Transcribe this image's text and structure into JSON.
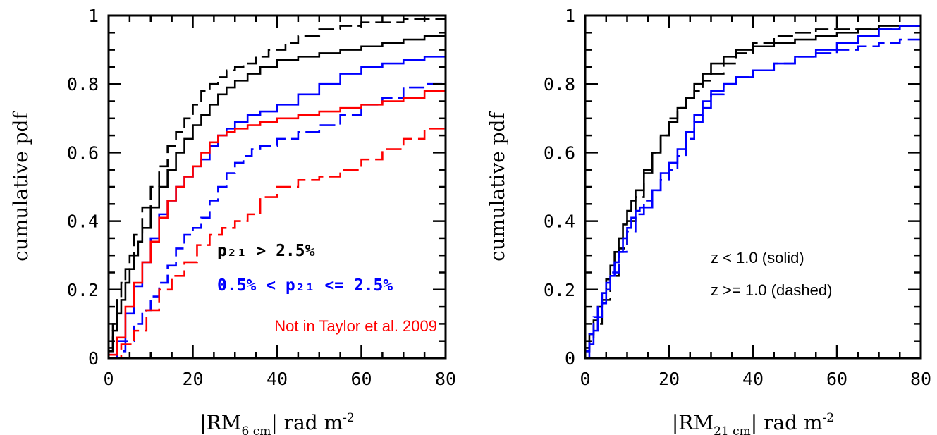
{
  "chart_data": [
    {
      "type": "line",
      "title": "",
      "xlabel": {
        "pre": "|RM",
        "sub": "6 cm",
        "post": "| rad m",
        "sup": "-2"
      },
      "ylabel": "cumulative pdf",
      "xlim": [
        0,
        80
      ],
      "ylim": [
        0,
        1
      ],
      "xticks": [
        0,
        20,
        40,
        60,
        80
      ],
      "xtick_labels": [
        "0",
        "20",
        "40",
        "60",
        "80"
      ],
      "yticks": [
        0,
        0.2,
        0.4,
        0.6,
        0.8,
        1
      ],
      "ytick_labels": [
        "0",
        "0.2",
        "0.4",
        "0.6",
        "0.8",
        "1"
      ],
      "annotations": [
        {
          "text": "p₂₁ > 2.5%",
          "color": "#000000"
        },
        {
          "text": "0.5% < p₂₁ <= 2.5%",
          "color": "#0000ff"
        },
        {
          "text": "Not in Taylor et al. 2009",
          "color": "#ff0000"
        }
      ],
      "series": [
        {
          "color": "#000000",
          "dash": "solid",
          "step": true,
          "x": [
            0,
            1,
            2,
            3,
            4,
            5,
            6,
            7,
            8,
            10,
            12,
            14,
            16,
            18,
            20,
            22,
            24,
            26,
            28,
            30,
            33,
            36,
            40,
            45,
            50,
            55,
            60,
            65,
            70,
            75,
            80
          ],
          "y": [
            0.02,
            0.08,
            0.13,
            0.17,
            0.22,
            0.26,
            0.3,
            0.34,
            0.38,
            0.44,
            0.5,
            0.55,
            0.6,
            0.64,
            0.68,
            0.71,
            0.74,
            0.77,
            0.79,
            0.81,
            0.83,
            0.85,
            0.87,
            0.88,
            0.89,
            0.9,
            0.91,
            0.92,
            0.93,
            0.94,
            0.95
          ]
        },
        {
          "color": "#000000",
          "dash": "dashed",
          "step": true,
          "x": [
            0,
            1,
            2,
            3,
            4,
            5,
            6,
            8,
            10,
            12,
            14,
            16,
            18,
            20,
            22,
            24,
            26,
            28,
            30,
            32,
            35,
            38,
            42,
            45,
            50,
            55,
            60,
            65,
            70,
            80
          ],
          "y": [
            0.03,
            0.1,
            0.17,
            0.22,
            0.26,
            0.3,
            0.36,
            0.44,
            0.5,
            0.56,
            0.62,
            0.66,
            0.7,
            0.74,
            0.78,
            0.8,
            0.82,
            0.84,
            0.85,
            0.86,
            0.88,
            0.9,
            0.92,
            0.94,
            0.96,
            0.97,
            0.98,
            0.98,
            0.99,
            0.99
          ]
        },
        {
          "color": "#0000ff",
          "dash": "solid",
          "step": true,
          "x": [
            0,
            2,
            4,
            6,
            8,
            10,
            12,
            14,
            16,
            18,
            20,
            22,
            24,
            26,
            28,
            30,
            33,
            36,
            40,
            45,
            50,
            55,
            60,
            65,
            70,
            75,
            80
          ],
          "y": [
            0.01,
            0.05,
            0.13,
            0.21,
            0.28,
            0.35,
            0.42,
            0.46,
            0.5,
            0.53,
            0.56,
            0.58,
            0.62,
            0.65,
            0.67,
            0.69,
            0.71,
            0.72,
            0.74,
            0.77,
            0.8,
            0.83,
            0.85,
            0.86,
            0.87,
            0.88,
            0.89
          ]
        },
        {
          "color": "#0000ff",
          "dash": "dashed",
          "step": true,
          "x": [
            0,
            2,
            4,
            6,
            8,
            10,
            12,
            14,
            16,
            18,
            20,
            22,
            24,
            26,
            28,
            30,
            32,
            34,
            36,
            40,
            45,
            50,
            55,
            60,
            65,
            70,
            75,
            80
          ],
          "y": [
            0.0,
            0.02,
            0.05,
            0.1,
            0.14,
            0.18,
            0.22,
            0.27,
            0.32,
            0.36,
            0.38,
            0.41,
            0.46,
            0.5,
            0.54,
            0.57,
            0.59,
            0.61,
            0.62,
            0.64,
            0.66,
            0.68,
            0.71,
            0.74,
            0.76,
            0.79,
            0.8,
            0.81
          ]
        },
        {
          "color": "#ff0000",
          "dash": "solid",
          "step": true,
          "x": [
            0,
            2,
            4,
            6,
            8,
            10,
            12,
            14,
            16,
            18,
            20,
            22,
            24,
            26,
            28,
            30,
            33,
            36,
            40,
            45,
            50,
            55,
            60,
            65,
            70,
            75,
            80
          ],
          "y": [
            0.01,
            0.06,
            0.15,
            0.22,
            0.28,
            0.34,
            0.41,
            0.46,
            0.5,
            0.53,
            0.56,
            0.6,
            0.63,
            0.65,
            0.66,
            0.67,
            0.68,
            0.69,
            0.7,
            0.71,
            0.72,
            0.73,
            0.74,
            0.75,
            0.76,
            0.78,
            0.8
          ]
        },
        {
          "color": "#ff0000",
          "dash": "dashed",
          "step": true,
          "x": [
            0,
            3,
            6,
            9,
            12,
            15,
            18,
            21,
            24,
            27,
            30,
            33,
            36,
            40,
            45,
            50,
            55,
            60,
            65,
            70,
            75,
            80
          ],
          "y": [
            0.0,
            0.04,
            0.08,
            0.14,
            0.2,
            0.24,
            0.28,
            0.33,
            0.36,
            0.38,
            0.4,
            0.42,
            0.47,
            0.5,
            0.52,
            0.53,
            0.55,
            0.58,
            0.61,
            0.64,
            0.67,
            0.7
          ]
        }
      ]
    },
    {
      "type": "line",
      "title": "",
      "xlabel": {
        "pre": "|RM",
        "sub": "21 cm",
        "post": "| rad m",
        "sup": "-2"
      },
      "ylabel": "cumulative pdf",
      "xlim": [
        0,
        80
      ],
      "ylim": [
        0,
        1
      ],
      "xticks": [
        0,
        20,
        40,
        60,
        80
      ],
      "xtick_labels": [
        "0",
        "20",
        "40",
        "60",
        "80"
      ],
      "yticks": [
        0,
        0.2,
        0.4,
        0.6,
        0.8,
        1
      ],
      "ytick_labels": [
        "0",
        "0.2",
        "0.4",
        "0.6",
        "0.8",
        "1"
      ],
      "annotations": [
        {
          "text": "z < 1.0 (solid)",
          "color": "#000000"
        },
        {
          "text": "z >= 1.0 (dashed)",
          "color": "#000000"
        }
      ],
      "series": [
        {
          "color": "#000000",
          "dash": "solid",
          "step": true,
          "x": [
            0,
            1,
            2,
            3,
            4,
            5,
            6,
            7,
            8,
            9,
            10,
            11,
            12,
            14,
            16,
            18,
            20,
            22,
            24,
            26,
            28,
            30,
            33,
            36,
            40,
            45,
            50,
            55,
            60,
            65,
            70,
            75,
            80
          ],
          "y": [
            0.03,
            0.07,
            0.11,
            0.15,
            0.19,
            0.23,
            0.27,
            0.31,
            0.35,
            0.39,
            0.43,
            0.46,
            0.49,
            0.55,
            0.6,
            0.65,
            0.69,
            0.73,
            0.76,
            0.8,
            0.83,
            0.86,
            0.88,
            0.9,
            0.91,
            0.92,
            0.93,
            0.94,
            0.95,
            0.96,
            0.97,
            0.97,
            0.98
          ]
        },
        {
          "color": "#000000",
          "dash": "dashed",
          "step": true,
          "x": [
            0,
            1,
            2,
            4,
            6,
            8,
            10,
            12,
            14,
            16,
            18,
            20,
            22,
            24,
            26,
            28,
            30,
            33,
            36,
            40,
            45,
            50,
            55,
            60,
            65,
            70,
            75,
            80
          ],
          "y": [
            0.02,
            0.06,
            0.1,
            0.17,
            0.24,
            0.32,
            0.4,
            0.47,
            0.54,
            0.6,
            0.65,
            0.7,
            0.73,
            0.76,
            0.78,
            0.81,
            0.83,
            0.86,
            0.89,
            0.92,
            0.94,
            0.95,
            0.96,
            0.96,
            0.96,
            0.96,
            0.97,
            0.98
          ]
        },
        {
          "color": "#0000ff",
          "dash": "solid",
          "step": true,
          "x": [
            0,
            1,
            2,
            3,
            4,
            5,
            6,
            7,
            8,
            9,
            10,
            11,
            12,
            13,
            14,
            16,
            18,
            20,
            22,
            24,
            26,
            28,
            30,
            33,
            36,
            40,
            45,
            50,
            55,
            60,
            65,
            70,
            75,
            80
          ],
          "y": [
            0.0,
            0.04,
            0.08,
            0.12,
            0.16,
            0.2,
            0.24,
            0.28,
            0.31,
            0.35,
            0.38,
            0.41,
            0.43,
            0.44,
            0.44,
            0.49,
            0.54,
            0.57,
            0.61,
            0.66,
            0.71,
            0.75,
            0.78,
            0.8,
            0.82,
            0.84,
            0.86,
            0.88,
            0.9,
            0.92,
            0.94,
            0.96,
            0.97,
            0.97
          ]
        },
        {
          "color": "#0000ff",
          "dash": "dashed",
          "step": true,
          "x": [
            0,
            1,
            2,
            3,
            4,
            5,
            6,
            8,
            10,
            12,
            14,
            16,
            18,
            20,
            22,
            24,
            26,
            28,
            30,
            33,
            36,
            40,
            45,
            50,
            55,
            60,
            65,
            70,
            75,
            80
          ],
          "y": [
            0.02,
            0.07,
            0.12,
            0.16,
            0.19,
            0.22,
            0.25,
            0.31,
            0.37,
            0.42,
            0.46,
            0.49,
            0.52,
            0.55,
            0.59,
            0.64,
            0.69,
            0.73,
            0.77,
            0.8,
            0.82,
            0.84,
            0.86,
            0.88,
            0.89,
            0.9,
            0.91,
            0.92,
            0.93,
            0.94
          ]
        }
      ]
    }
  ]
}
